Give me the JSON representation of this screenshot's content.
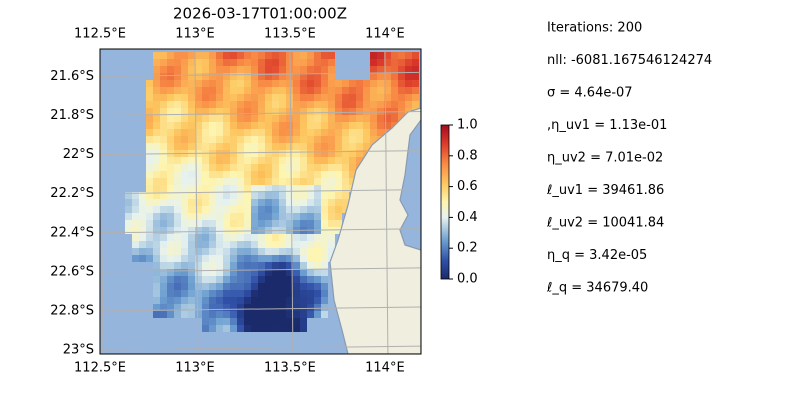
{
  "title": "2026-03-17T01:00:00Z",
  "map": {
    "lon_lim": [
      112.5,
      114.19
    ],
    "lat_lim": [
      21.46,
      23.02
    ],
    "lon_ticks": [
      {
        "value": 112.5,
        "label": "112.5°E"
      },
      {
        "value": 113,
        "label": "113°E"
      },
      {
        "value": 113.5,
        "label": "113.5°E"
      },
      {
        "value": 114,
        "label": "114°E"
      }
    ],
    "lat_ticks": [
      {
        "value": 21.6,
        "label": "21.6°S"
      },
      {
        "value": 21.8,
        "label": "21.8°S"
      },
      {
        "value": 22,
        "label": "22°S"
      },
      {
        "value": 22.2,
        "label": "22.2°S"
      },
      {
        "value": 22.4,
        "label": "22.4°S"
      },
      {
        "value": 22.6,
        "label": "22.6°S"
      },
      {
        "value": 22.8,
        "label": "22.8°S"
      },
      {
        "value": 23,
        "label": "23°S"
      }
    ],
    "colorbar": {
      "lim": [
        0,
        1
      ],
      "ticks": [
        {
          "value": 0,
          "label": "0.0"
        },
        {
          "value": 0.2,
          "label": "0.2"
        },
        {
          "value": 0.4,
          "label": "0.4"
        },
        {
          "value": 0.6,
          "label": "0.6"
        },
        {
          "value": 0.8,
          "label": "0.8"
        },
        {
          "value": 1,
          "label": "1.0"
        }
      ]
    }
  },
  "info": [
    "Iterations: 200",
    "nll: -6081.167546124274",
    "σ = 4.64e-07",
    ",η_uv1 = 1.13e-01",
    "η_uv2 = 7.01e-02",
    "ℓ_uv1 = 39461.86",
    "ℓ_uv2 = 10041.84",
    "η_q = 3.42e-05",
    "ℓ_q = 34679.40"
  ]
}
